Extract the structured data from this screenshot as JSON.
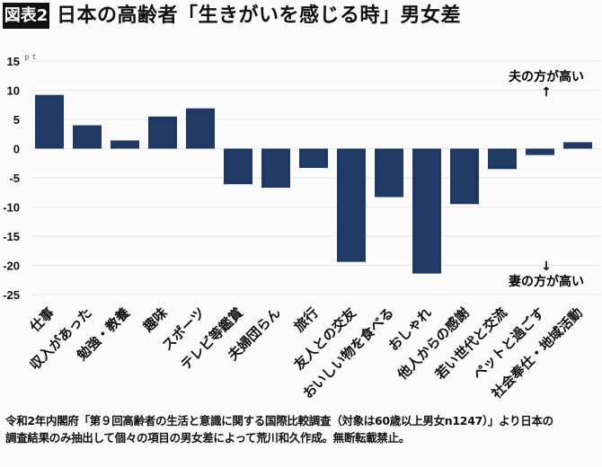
{
  "header": {
    "badge": "図表2",
    "title": "日本の高齢者「生きがいを感じる時」男女差"
  },
  "chart_data": {
    "type": "bar",
    "title": "日本の高齢者「生きがいを感じる時」男女差",
    "ylabel": "ｐｔ",
    "ylim": [
      -25,
      15
    ],
    "yticks": [
      15,
      10,
      5,
      0,
      -5,
      -10,
      -15,
      -20,
      -25
    ],
    "grid": true,
    "bar_color": "#1f3864",
    "categories": [
      "仕事",
      "収入があった",
      "勉強・教養",
      "趣味",
      "スポーツ",
      "テレビ等鑑賞",
      "夫婦団らん",
      "旅行",
      "友人との交友",
      "おいしい物を食べる",
      "おしゃれ",
      "他人からの感謝",
      "若い世代と交流",
      "ペットと過ごす",
      "社会奉仕・地域活動"
    ],
    "values": [
      9.2,
      4.0,
      1.4,
      5.5,
      6.9,
      -6.1,
      -6.7,
      -3.3,
      -19.4,
      -8.3,
      -21.4,
      -9.5,
      -3.5,
      -1.1,
      1.1
    ],
    "annotations": {
      "up": "夫の方が高い",
      "up_arrow": "↑",
      "down": "妻の方が高い",
      "down_arrow": "↓"
    }
  },
  "footer": {
    "line1": "令和2年内閣府「第９回高齢者の生活と意識に関する国際比較調査（対象は60歳以上男女n1247）」より日本の",
    "line2": "調査結果のみ抽出して個々の項目の男女差によって荒川和久作成。無断転載禁止。"
  }
}
